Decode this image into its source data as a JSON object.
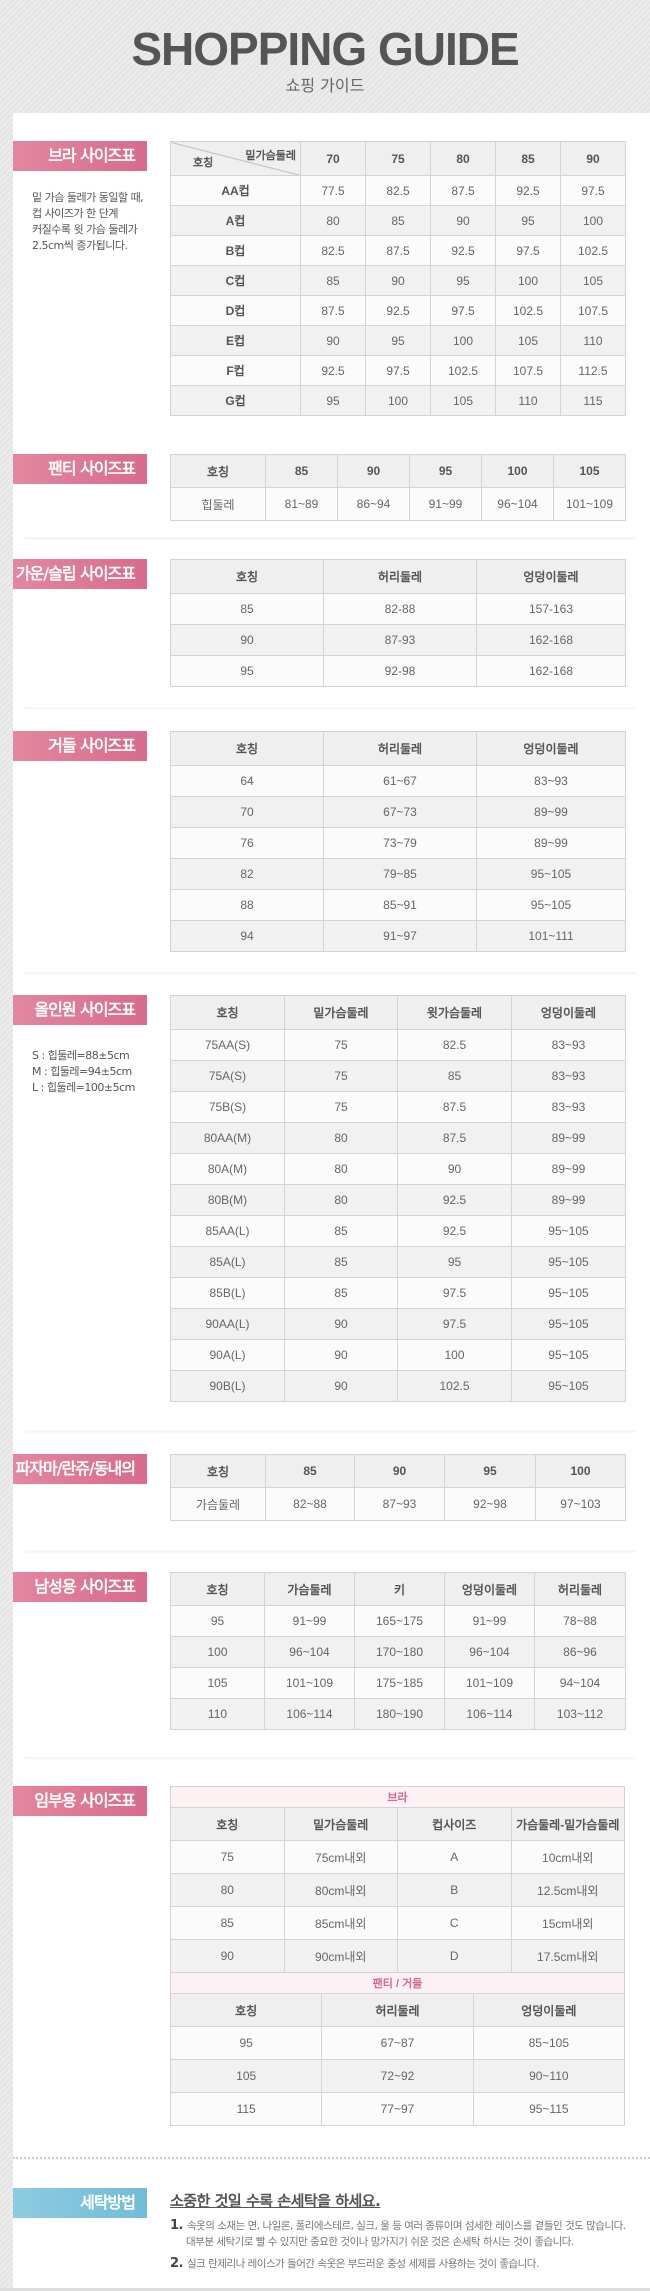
{
  "header": {
    "title": "SHOPPING GUIDE",
    "subtitle": "쇼핑 가이드"
  },
  "colors": {
    "label_pink": "#d86b8c",
    "label_blue": "#72bcd6",
    "pink_text": "#d46a8c"
  },
  "sections": [
    {
      "label": "브라 사이즈표",
      "note": [
        "밑 가슴 둘레가 동일할 때,",
        "컵 사이즈가 한 단계",
        "커질수록 윗 가슴 둘레가",
        "2.5cm씩 증가됩니다."
      ],
      "diag": {
        "top": "밑가슴둘레",
        "bottom": "호칭"
      },
      "headers": [
        "",
        "70",
        "75",
        "80",
        "85",
        "90"
      ],
      "rows": [
        [
          "AA컵",
          "77.5",
          "82.5",
          "87.5",
          "92.5",
          "97.5"
        ],
        [
          "A컵",
          "80",
          "85",
          "90",
          "95",
          "100"
        ],
        [
          "B컵",
          "82.5",
          "87.5",
          "92.5",
          "97.5",
          "102.5"
        ],
        [
          "C컵",
          "85",
          "90",
          "95",
          "100",
          "105"
        ],
        [
          "D컵",
          "87.5",
          "92.5",
          "97.5",
          "102.5",
          "107.5"
        ],
        [
          "E컵",
          "90",
          "95",
          "100",
          "105",
          "110"
        ],
        [
          "F컵",
          "92.5",
          "97.5",
          "102.5",
          "107.5",
          "112.5"
        ],
        [
          "G컵",
          "95",
          "100",
          "105",
          "110",
          "115"
        ]
      ]
    },
    {
      "label": "팬티 사이즈표",
      "headers": [
        "호칭",
        "85",
        "90",
        "95",
        "100",
        "105"
      ],
      "rows": [
        [
          "힙둘레",
          "81~89",
          "86~94",
          "91~99",
          "96~104",
          "101~109"
        ]
      ]
    },
    {
      "label": "가운/슬립 사이즈표",
      "headers": [
        "호칭",
        "허리둘레",
        "엉덩이둘레"
      ],
      "rows": [
        [
          "85",
          "82-88",
          "157-163"
        ],
        [
          "90",
          "87-93",
          "162-168"
        ],
        [
          "95",
          "92-98",
          "162-168"
        ]
      ]
    },
    {
      "label": "거들 사이즈표",
      "headers": [
        "호칭",
        "허리둘레",
        "엉덩이둘레"
      ],
      "rows": [
        [
          "64",
          "61~67",
          "83~93"
        ],
        [
          "70",
          "67~73",
          "89~99"
        ],
        [
          "76",
          "73~79",
          "89~99"
        ],
        [
          "82",
          "79~85",
          "95~105"
        ],
        [
          "88",
          "85~91",
          "95~105"
        ],
        [
          "94",
          "91~97",
          "101~111"
        ]
      ]
    },
    {
      "label": "올인원 사이즈표",
      "note": [
        "S : 힙둘레=88±5cm",
        "M : 힙둘레=94±5cm",
        "L : 힙둘레=100±5cm"
      ],
      "headers": [
        "호칭",
        "밑가슴둘레",
        "윗가슴둘레",
        "엉덩이둘레"
      ],
      "rows": [
        [
          "75AA(S)",
          "75",
          "82.5",
          "83~93"
        ],
        [
          "75A(S)",
          "75",
          "85",
          "83~93"
        ],
        [
          "75B(S)",
          "75",
          "87.5",
          "83~93"
        ],
        [
          "80AA(M)",
          "80",
          "87.5",
          "89~99"
        ],
        [
          "80A(M)",
          "80",
          "90",
          "89~99"
        ],
        [
          "80B(M)",
          "80",
          "92.5",
          "89~99"
        ],
        [
          "85AA(L)",
          "85",
          "92.5",
          "95~105"
        ],
        [
          "85A(L)",
          "85",
          "95",
          "95~105"
        ],
        [
          "85B(L)",
          "85",
          "97.5",
          "95~105"
        ],
        [
          "90AA(L)",
          "90",
          "97.5",
          "95~105"
        ],
        [
          "90A(L)",
          "90",
          "100",
          "95~105"
        ],
        [
          "90B(L)",
          "90",
          "102.5",
          "95~105"
        ]
      ]
    },
    {
      "label": "파자마/란쥬/동내의",
      "headers": [
        "호칭",
        "85",
        "90",
        "95",
        "100"
      ],
      "rows": [
        [
          "가슴둘레",
          "82~88",
          "87~93",
          "92~98",
          "97~103"
        ]
      ]
    },
    {
      "label": "남성용 사이즈표",
      "headers": [
        "호칭",
        "가슴둘레",
        "키",
        "엉덩이둘레",
        "허리둘레"
      ],
      "rows": [
        [
          "95",
          "91~99",
          "165~175",
          "91~99",
          "78~88"
        ],
        [
          "100",
          "96~104",
          "170~180",
          "96~104",
          "86~96"
        ],
        [
          "105",
          "101~109",
          "175~185",
          "101~109",
          "94~104"
        ],
        [
          "110",
          "106~114",
          "180~190",
          "106~114",
          "103~112"
        ]
      ]
    },
    {
      "label": "임부용 사이즈표",
      "groups": [
        {
          "title": "브라",
          "headers": [
            "호칭",
            "밑가슴둘레",
            "컵사이즈",
            "가슴둘레-밑가슴둘레"
          ],
          "rows": [
            [
              "75",
              "75cm내외",
              "A",
              "10cm내외"
            ],
            [
              "80",
              "80cm내외",
              "B",
              "12.5cm내외"
            ],
            [
              "85",
              "85cm내외",
              "C",
              "15cm내외"
            ],
            [
              "90",
              "90cm내외",
              "D",
              "17.5cm내외"
            ]
          ]
        },
        {
          "title": "팬티 / 거들",
          "headers": [
            "호칭",
            "허리둘레",
            "엉덩이둘레"
          ],
          "rows": [
            [
              "95",
              "67~87",
              "85~105"
            ],
            [
              "105",
              "72~92",
              "90~110"
            ],
            [
              "115",
              "77~97",
              "95~115"
            ]
          ]
        }
      ]
    }
  ],
  "laundry": {
    "label": "세탁방법",
    "heading": "소중한 것일 수록 손세탁을 하세요.",
    "items": [
      {
        "num": "1.",
        "text": "속옷의 소재는 면, 나일론, 폴리에스테르, 실크, 울 등 여러 종류이며 섬세한 레이스를 곁들인 것도 많습니다. 대부분 세탁기로 빨 수 있지만 중요한 것이나 망가지기 쉬운 것은 손세탁 하시는 것이 좋습니다."
      },
      {
        "num": "2.",
        "text": "실크 란제리나 레이스가 들어간 속옷은 부드러운 중성 세제를 사용하는 것이 좋습니다."
      }
    ]
  }
}
